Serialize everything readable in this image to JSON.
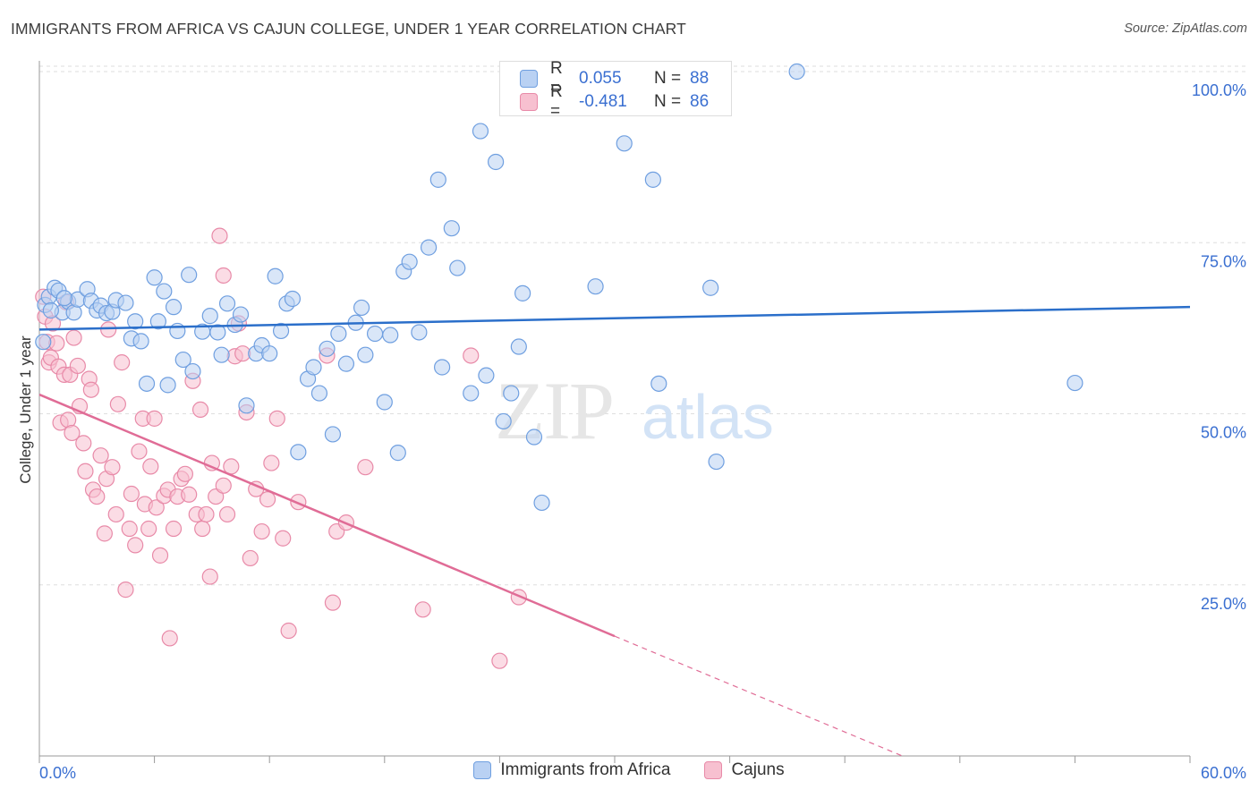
{
  "title": "IMMIGRANTS FROM AFRICA VS CAJUN COLLEGE, UNDER 1 YEAR CORRELATION CHART",
  "source": "Source: ZipAtlas.com",
  "legend_box": {
    "rows": [
      {
        "r_label": "R =",
        "r_value": "0.055",
        "n_label": "N =",
        "n_value": "88"
      },
      {
        "r_label": "R =",
        "r_value": "-0.481",
        "n_label": "N =",
        "n_value": "86"
      }
    ]
  },
  "colors": {
    "blue": "#6f9fe0",
    "blue_fill": "#b9d1f3",
    "blue_line": "#2b6fca",
    "pink": "#e88aa8",
    "pink_fill": "#f7c0d0",
    "pink_line": "#e06c96",
    "tick_text": "#3a6fd1",
    "grid": "#dedede"
  },
  "chart_data": {
    "type": "scatter",
    "title": "IMMIGRANTS FROM AFRICA VS CAJUN COLLEGE, UNDER 1 YEAR CORRELATION CHART",
    "xlabel": "",
    "ylabel": "College, Under 1 year",
    "xlim": [
      0,
      60
    ],
    "ylim": [
      0,
      104
    ],
    "x_tick_labels": [
      "0.0%",
      "60.0%"
    ],
    "y_ticks": [
      25,
      50,
      75,
      100
    ],
    "y_tick_labels": [
      "25.0%",
      "50.0%",
      "75.0%",
      "100.0%"
    ],
    "watermark": {
      "part1": "ZIP",
      "part2": "atlas"
    },
    "series": [
      {
        "name": "Immigrants from Africa",
        "color": "blue",
        "trend": {
          "x": [
            0,
            60
          ],
          "y": [
            62.3,
            65.6
          ]
        },
        "points": [
          [
            0.3,
            65.9
          ],
          [
            0.5,
            67.1
          ],
          [
            0.8,
            68.4
          ],
          [
            1.0,
            68.0
          ],
          [
            1.2,
            64.8
          ],
          [
            1.5,
            66.4
          ],
          [
            1.8,
            64.8
          ],
          [
            2.0,
            66.7
          ],
          [
            2.5,
            68.2
          ],
          [
            2.7,
            66.5
          ],
          [
            3.0,
            65.1
          ],
          [
            3.2,
            65.8
          ],
          [
            3.5,
            64.7
          ],
          [
            3.8,
            64.9
          ],
          [
            4.0,
            66.6
          ],
          [
            4.5,
            66.2
          ],
          [
            4.8,
            61.0
          ],
          [
            5.0,
            63.5
          ],
          [
            5.3,
            60.6
          ],
          [
            5.6,
            54.4
          ],
          [
            6.0,
            69.9
          ],
          [
            6.2,
            63.5
          ],
          [
            6.5,
            67.9
          ],
          [
            6.7,
            54.2
          ],
          [
            7.0,
            65.6
          ],
          [
            7.2,
            62.1
          ],
          [
            7.5,
            57.9
          ],
          [
            7.8,
            70.3
          ],
          [
            8.0,
            56.2
          ],
          [
            8.5,
            62.0
          ],
          [
            8.9,
            64.3
          ],
          [
            9.3,
            61.9
          ],
          [
            9.5,
            58.6
          ],
          [
            9.8,
            66.1
          ],
          [
            10.2,
            63.0
          ],
          [
            10.5,
            64.5
          ],
          [
            10.8,
            51.2
          ],
          [
            11.3,
            58.8
          ],
          [
            11.6,
            60.0
          ],
          [
            12.0,
            58.8
          ],
          [
            12.3,
            70.1
          ],
          [
            12.6,
            62.1
          ],
          [
            12.9,
            66.1
          ],
          [
            13.2,
            66.8
          ],
          [
            13.5,
            44.4
          ],
          [
            14.0,
            55.1
          ],
          [
            14.3,
            56.8
          ],
          [
            14.6,
            53.0
          ],
          [
            15.0,
            59.5
          ],
          [
            15.3,
            47.0
          ],
          [
            15.6,
            61.7
          ],
          [
            16.0,
            57.3
          ],
          [
            16.5,
            63.3
          ],
          [
            16.8,
            65.5
          ],
          [
            17.0,
            58.6
          ],
          [
            17.5,
            61.7
          ],
          [
            18.0,
            51.7
          ],
          [
            18.3,
            61.5
          ],
          [
            18.7,
            44.3
          ],
          [
            19.0,
            70.8
          ],
          [
            19.3,
            72.2
          ],
          [
            19.8,
            61.9
          ],
          [
            20.3,
            74.3
          ],
          [
            20.8,
            84.2
          ],
          [
            21.0,
            56.8
          ],
          [
            21.5,
            77.1
          ],
          [
            21.8,
            71.3
          ],
          [
            22.5,
            53.0
          ],
          [
            23.0,
            91.3
          ],
          [
            23.3,
            55.6
          ],
          [
            23.8,
            86.8
          ],
          [
            24.2,
            48.9
          ],
          [
            24.6,
            53.0
          ],
          [
            25.0,
            59.8
          ],
          [
            25.2,
            67.6
          ],
          [
            25.8,
            46.6
          ],
          [
            26.2,
            37.0
          ],
          [
            29.0,
            68.6
          ],
          [
            30.5,
            89.5
          ],
          [
            32.0,
            84.2
          ],
          [
            32.3,
            54.4
          ],
          [
            35.0,
            68.4
          ],
          [
            35.3,
            43.0
          ],
          [
            39.5,
            100.0
          ],
          [
            54.0,
            54.5
          ],
          [
            0.2,
            60.5
          ],
          [
            0.6,
            65.1
          ],
          [
            1.3,
            66.9
          ]
        ]
      },
      {
        "name": "Cajuns",
        "color": "pink",
        "trend": {
          "x": [
            0,
            30
          ],
          "y": [
            52.8,
            17.5
          ]
        },
        "trend_dashed": {
          "x": [
            30,
            45
          ],
          "y": [
            17.5,
            0
          ]
        },
        "points": [
          [
            0.2,
            67.1
          ],
          [
            0.3,
            64.2
          ],
          [
            0.4,
            60.5
          ],
          [
            0.5,
            57.5
          ],
          [
            0.6,
            58.2
          ],
          [
            0.7,
            63.2
          ],
          [
            0.9,
            60.3
          ],
          [
            1.0,
            56.9
          ],
          [
            1.1,
            48.7
          ],
          [
            1.3,
            55.7
          ],
          [
            1.4,
            66.3
          ],
          [
            1.5,
            49.1
          ],
          [
            1.6,
            55.7
          ],
          [
            1.7,
            47.2
          ],
          [
            1.8,
            61.1
          ],
          [
            2.0,
            57.0
          ],
          [
            2.1,
            51.1
          ],
          [
            2.3,
            45.7
          ],
          [
            2.4,
            41.6
          ],
          [
            2.6,
            55.1
          ],
          [
            2.7,
            53.5
          ],
          [
            2.8,
            38.9
          ],
          [
            3.0,
            37.9
          ],
          [
            3.2,
            43.9
          ],
          [
            3.4,
            32.5
          ],
          [
            3.5,
            40.5
          ],
          [
            3.6,
            62.3
          ],
          [
            3.8,
            42.2
          ],
          [
            4.0,
            35.3
          ],
          [
            4.1,
            51.4
          ],
          [
            4.3,
            57.5
          ],
          [
            4.5,
            24.3
          ],
          [
            4.7,
            33.2
          ],
          [
            4.8,
            38.3
          ],
          [
            5.0,
            30.8
          ],
          [
            5.2,
            44.5
          ],
          [
            5.4,
            49.3
          ],
          [
            5.5,
            36.8
          ],
          [
            5.7,
            33.2
          ],
          [
            5.8,
            42.3
          ],
          [
            6.0,
            49.3
          ],
          [
            6.1,
            36.3
          ],
          [
            6.3,
            29.3
          ],
          [
            6.5,
            38.0
          ],
          [
            6.7,
            38.9
          ],
          [
            6.8,
            17.2
          ],
          [
            7.0,
            33.2
          ],
          [
            7.2,
            37.9
          ],
          [
            7.4,
            40.5
          ],
          [
            7.6,
            41.2
          ],
          [
            7.8,
            38.2
          ],
          [
            8.0,
            54.8
          ],
          [
            8.2,
            35.3
          ],
          [
            8.4,
            50.6
          ],
          [
            8.5,
            33.2
          ],
          [
            8.7,
            35.3
          ],
          [
            8.9,
            26.2
          ],
          [
            9.0,
            42.8
          ],
          [
            9.2,
            37.9
          ],
          [
            9.4,
            76.0
          ],
          [
            9.6,
            39.5
          ],
          [
            9.8,
            35.3
          ],
          [
            10.0,
            42.3
          ],
          [
            10.2,
            58.4
          ],
          [
            10.4,
            63.2
          ],
          [
            10.6,
            58.8
          ],
          [
            10.8,
            50.2
          ],
          [
            11.0,
            28.9
          ],
          [
            11.3,
            39.0
          ],
          [
            11.6,
            32.8
          ],
          [
            11.9,
            37.5
          ],
          [
            12.1,
            42.8
          ],
          [
            12.4,
            49.3
          ],
          [
            12.7,
            31.8
          ],
          [
            13.0,
            18.3
          ],
          [
            13.5,
            37.1
          ],
          [
            15.0,
            58.5
          ],
          [
            15.3,
            22.4
          ],
          [
            15.5,
            32.8
          ],
          [
            16.0,
            34.1
          ],
          [
            17.0,
            42.2
          ],
          [
            20.0,
            21.4
          ],
          [
            22.5,
            58.5
          ],
          [
            24.0,
            13.9
          ],
          [
            25.0,
            23.2
          ],
          [
            9.6,
            70.2
          ]
        ]
      }
    ]
  }
}
